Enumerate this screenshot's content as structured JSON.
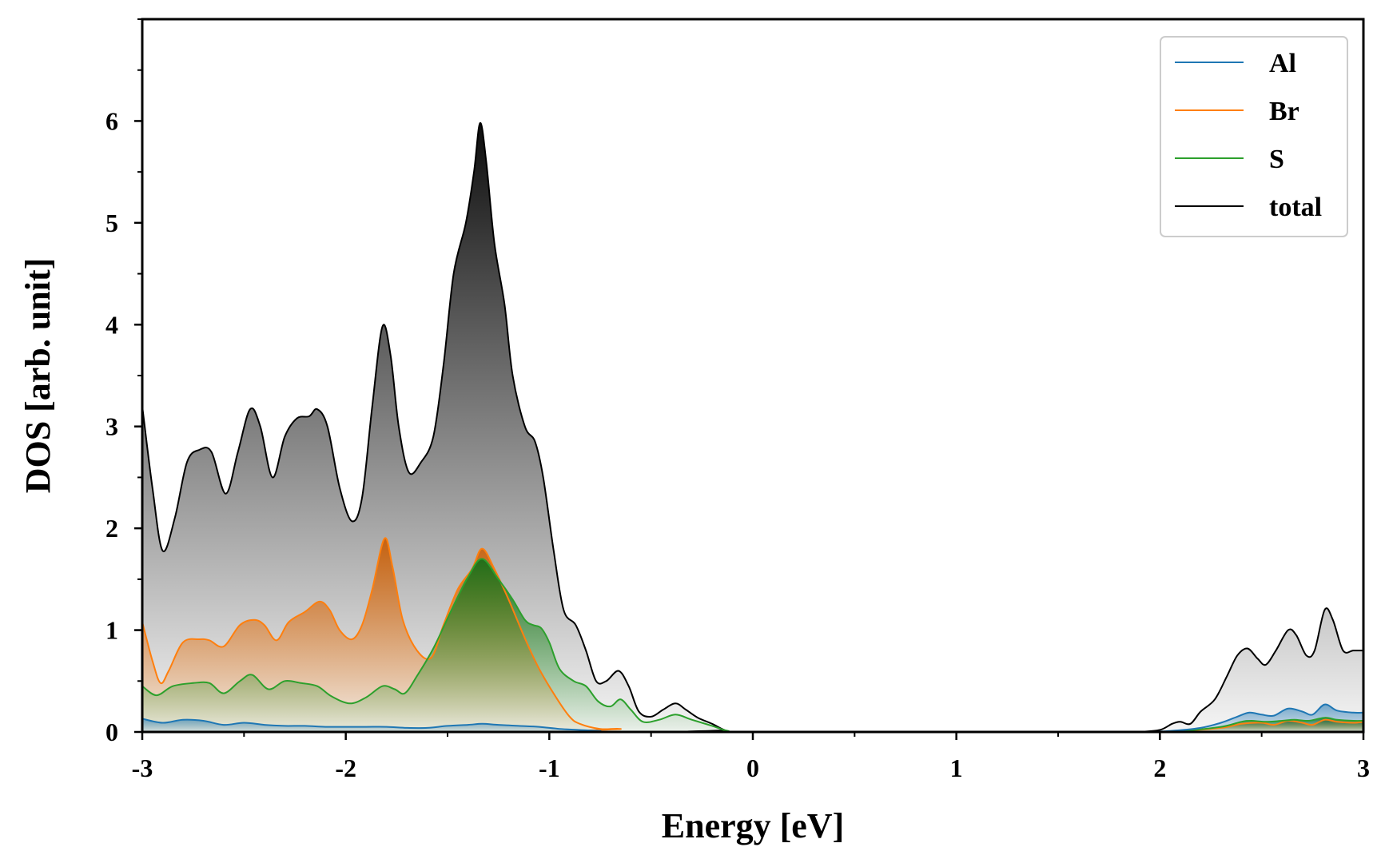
{
  "chart_data": {
    "type": "area",
    "xlabel": "Energy [eV]",
    "ylabel": "DOS [arb. unit]",
    "xlim": [
      -3,
      3
    ],
    "ylim": [
      0,
      7
    ],
    "xticks": [
      -3,
      -2,
      -1,
      0,
      1,
      2,
      3
    ],
    "xtick_labels": [
      "-3",
      "-2",
      "-1",
      "0",
      "1",
      "2",
      "3"
    ],
    "yticks": [
      0,
      1,
      2,
      3,
      4,
      5,
      6
    ],
    "ytick_labels": [
      "0",
      "1",
      "2",
      "3",
      "4",
      "5",
      "6"
    ],
    "legend_position": "top-right",
    "grid": false,
    "series": [
      {
        "name": "Al",
        "color": "#1f77b4",
        "points": [
          [
            -3.0,
            0.13
          ],
          [
            -2.9,
            0.09
          ],
          [
            -2.8,
            0.12
          ],
          [
            -2.7,
            0.11
          ],
          [
            -2.6,
            0.07
          ],
          [
            -2.5,
            0.09
          ],
          [
            -2.4,
            0.07
          ],
          [
            -2.3,
            0.06
          ],
          [
            -2.2,
            0.06
          ],
          [
            -2.1,
            0.05
          ],
          [
            -2.0,
            0.05
          ],
          [
            -1.9,
            0.05
          ],
          [
            -1.8,
            0.05
          ],
          [
            -1.7,
            0.04
          ],
          [
            -1.6,
            0.04
          ],
          [
            -1.5,
            0.06
          ],
          [
            -1.4,
            0.07
          ],
          [
            -1.33,
            0.08
          ],
          [
            -1.25,
            0.07
          ],
          [
            -1.15,
            0.06
          ],
          [
            -1.05,
            0.05
          ],
          [
            -0.95,
            0.03
          ],
          [
            -0.85,
            0.02
          ],
          [
            -0.75,
            0.01
          ],
          [
            -0.6,
            0.0
          ],
          [
            3.0,
            0.0
          ]
        ],
        "points_high": [
          [
            1.9,
            0.0
          ],
          [
            2.05,
            0.01
          ],
          [
            2.2,
            0.04
          ],
          [
            2.3,
            0.09
          ],
          [
            2.38,
            0.15
          ],
          [
            2.44,
            0.19
          ],
          [
            2.5,
            0.17
          ],
          [
            2.56,
            0.16
          ],
          [
            2.63,
            0.23
          ],
          [
            2.7,
            0.2
          ],
          [
            2.75,
            0.17
          ],
          [
            2.81,
            0.27
          ],
          [
            2.87,
            0.21
          ],
          [
            2.95,
            0.19
          ],
          [
            3.0,
            0.19
          ]
        ]
      },
      {
        "name": "Br",
        "color": "#ff7f0e",
        "points": [
          [
            -3.0,
            1.08
          ],
          [
            -2.95,
            0.7
          ],
          [
            -2.91,
            0.48
          ],
          [
            -2.87,
            0.6
          ],
          [
            -2.8,
            0.88
          ],
          [
            -2.72,
            0.91
          ],
          [
            -2.67,
            0.9
          ],
          [
            -2.6,
            0.84
          ],
          [
            -2.52,
            1.05
          ],
          [
            -2.45,
            1.1
          ],
          [
            -2.4,
            1.05
          ],
          [
            -2.34,
            0.9
          ],
          [
            -2.28,
            1.08
          ],
          [
            -2.2,
            1.18
          ],
          [
            -2.13,
            1.28
          ],
          [
            -2.08,
            1.2
          ],
          [
            -2.03,
            1.0
          ],
          [
            -1.97,
            0.91
          ],
          [
            -1.92,
            1.05
          ],
          [
            -1.87,
            1.4
          ],
          [
            -1.81,
            1.9
          ],
          [
            -1.77,
            1.62
          ],
          [
            -1.72,
            1.1
          ],
          [
            -1.65,
            0.8
          ],
          [
            -1.58,
            0.73
          ],
          [
            -1.52,
            1.05
          ],
          [
            -1.45,
            1.4
          ],
          [
            -1.38,
            1.6
          ],
          [
            -1.33,
            1.8
          ],
          [
            -1.27,
            1.6
          ],
          [
            -1.2,
            1.3
          ],
          [
            -1.12,
            0.92
          ],
          [
            -1.05,
            0.62
          ],
          [
            -0.97,
            0.35
          ],
          [
            -0.9,
            0.15
          ],
          [
            -0.85,
            0.08
          ],
          [
            -0.75,
            0.03
          ],
          [
            -0.65,
            0.03
          ],
          [
            -0.55,
            0.0
          ],
          [
            3.0,
            0.0
          ]
        ],
        "points_high": [
          [
            1.9,
            0.0
          ],
          [
            2.1,
            0.01
          ],
          [
            2.3,
            0.04
          ],
          [
            2.4,
            0.08
          ],
          [
            2.5,
            0.09
          ],
          [
            2.56,
            0.07
          ],
          [
            2.63,
            0.11
          ],
          [
            2.7,
            0.09
          ],
          [
            2.75,
            0.07
          ],
          [
            2.81,
            0.12
          ],
          [
            2.87,
            0.1
          ],
          [
            2.95,
            0.09
          ],
          [
            3.0,
            0.1
          ]
        ]
      },
      {
        "name": "S",
        "color": "#2ca02c",
        "points": [
          [
            -3.0,
            0.45
          ],
          [
            -2.93,
            0.36
          ],
          [
            -2.85,
            0.45
          ],
          [
            -2.75,
            0.48
          ],
          [
            -2.67,
            0.48
          ],
          [
            -2.6,
            0.38
          ],
          [
            -2.52,
            0.5
          ],
          [
            -2.46,
            0.56
          ],
          [
            -2.38,
            0.42
          ],
          [
            -2.3,
            0.5
          ],
          [
            -2.22,
            0.48
          ],
          [
            -2.14,
            0.45
          ],
          [
            -2.07,
            0.35
          ],
          [
            -1.98,
            0.28
          ],
          [
            -1.9,
            0.34
          ],
          [
            -1.82,
            0.45
          ],
          [
            -1.76,
            0.42
          ],
          [
            -1.71,
            0.38
          ],
          [
            -1.65,
            0.55
          ],
          [
            -1.57,
            0.82
          ],
          [
            -1.48,
            1.2
          ],
          [
            -1.4,
            1.52
          ],
          [
            -1.33,
            1.7
          ],
          [
            -1.25,
            1.5
          ],
          [
            -1.18,
            1.3
          ],
          [
            -1.12,
            1.1
          ],
          [
            -1.08,
            1.05
          ],
          [
            -1.04,
            1.02
          ],
          [
            -1.0,
            0.88
          ],
          [
            -0.95,
            0.62
          ],
          [
            -0.88,
            0.5
          ],
          [
            -0.82,
            0.45
          ],
          [
            -0.76,
            0.3
          ],
          [
            -0.7,
            0.25
          ],
          [
            -0.65,
            0.32
          ],
          [
            -0.6,
            0.22
          ],
          [
            -0.54,
            0.1
          ],
          [
            -0.46,
            0.12
          ],
          [
            -0.38,
            0.17
          ],
          [
            -0.3,
            0.12
          ],
          [
            -0.2,
            0.06
          ],
          [
            -0.12,
            0.01
          ],
          [
            0.0,
            0.0
          ],
          [
            3.0,
            0.0
          ]
        ],
        "points_high": [
          [
            1.9,
            0.0
          ],
          [
            2.1,
            0.01
          ],
          [
            2.3,
            0.05
          ],
          [
            2.4,
            0.1
          ],
          [
            2.45,
            0.11
          ],
          [
            2.52,
            0.1
          ],
          [
            2.6,
            0.11
          ],
          [
            2.66,
            0.12
          ],
          [
            2.73,
            0.11
          ],
          [
            2.81,
            0.14
          ],
          [
            2.87,
            0.12
          ],
          [
            2.95,
            0.11
          ],
          [
            3.0,
            0.11
          ]
        ]
      },
      {
        "name": "total",
        "color": "#000000",
        "points": [
          [
            -3.0,
            3.2
          ],
          [
            -2.95,
            2.4
          ],
          [
            -2.9,
            1.78
          ],
          [
            -2.84,
            2.1
          ],
          [
            -2.78,
            2.65
          ],
          [
            -2.72,
            2.77
          ],
          [
            -2.66,
            2.75
          ],
          [
            -2.59,
            2.34
          ],
          [
            -2.53,
            2.75
          ],
          [
            -2.47,
            3.17
          ],
          [
            -2.42,
            3.0
          ],
          [
            -2.36,
            2.5
          ],
          [
            -2.3,
            2.9
          ],
          [
            -2.24,
            3.08
          ],
          [
            -2.18,
            3.1
          ],
          [
            -2.14,
            3.17
          ],
          [
            -2.09,
            3.0
          ],
          [
            -2.03,
            2.4
          ],
          [
            -1.97,
            2.07
          ],
          [
            -1.92,
            2.3
          ],
          [
            -1.87,
            3.2
          ],
          [
            -1.82,
            3.98
          ],
          [
            -1.78,
            3.7
          ],
          [
            -1.74,
            3.0
          ],
          [
            -1.69,
            2.55
          ],
          [
            -1.63,
            2.65
          ],
          [
            -1.57,
            2.9
          ],
          [
            -1.52,
            3.6
          ],
          [
            -1.47,
            4.5
          ],
          [
            -1.41,
            5.0
          ],
          [
            -1.37,
            5.5
          ],
          [
            -1.34,
            5.98
          ],
          [
            -1.31,
            5.6
          ],
          [
            -1.27,
            4.8
          ],
          [
            -1.22,
            4.2
          ],
          [
            -1.18,
            3.5
          ],
          [
            -1.12,
            3.0
          ],
          [
            -1.07,
            2.85
          ],
          [
            -1.03,
            2.5
          ],
          [
            -0.98,
            1.8
          ],
          [
            -0.93,
            1.2
          ],
          [
            -0.87,
            1.05
          ],
          [
            -0.82,
            0.8
          ],
          [
            -0.77,
            0.5
          ],
          [
            -0.72,
            0.5
          ],
          [
            -0.66,
            0.6
          ],
          [
            -0.61,
            0.45
          ],
          [
            -0.56,
            0.2
          ],
          [
            -0.5,
            0.15
          ],
          [
            -0.44,
            0.22
          ],
          [
            -0.38,
            0.28
          ],
          [
            -0.33,
            0.22
          ],
          [
            -0.27,
            0.14
          ],
          [
            -0.2,
            0.08
          ],
          [
            -0.14,
            0.02
          ],
          [
            -0.08,
            0.0
          ],
          [
            3.0,
            0.0
          ]
        ],
        "points_high": [
          [
            1.9,
            0.0
          ],
          [
            2.0,
            0.02
          ],
          [
            2.06,
            0.08
          ],
          [
            2.1,
            0.1
          ],
          [
            2.15,
            0.08
          ],
          [
            2.2,
            0.2
          ],
          [
            2.27,
            0.32
          ],
          [
            2.33,
            0.55
          ],
          [
            2.38,
            0.75
          ],
          [
            2.43,
            0.82
          ],
          [
            2.48,
            0.72
          ],
          [
            2.52,
            0.66
          ],
          [
            2.57,
            0.8
          ],
          [
            2.63,
            1.0
          ],
          [
            2.67,
            0.95
          ],
          [
            2.72,
            0.75
          ],
          [
            2.76,
            0.8
          ],
          [
            2.81,
            1.2
          ],
          [
            2.85,
            1.1
          ],
          [
            2.9,
            0.8
          ],
          [
            2.95,
            0.8
          ],
          [
            3.0,
            0.8
          ]
        ]
      }
    ]
  }
}
